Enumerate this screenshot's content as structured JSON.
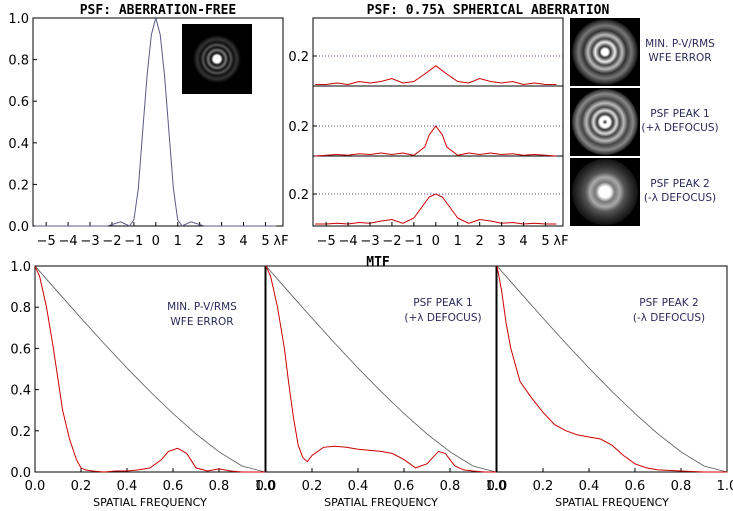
{
  "titles": {
    "psf_free": "PSF: ABERRATION-FREE",
    "psf_sa": "PSF: 0.75λ SPHERICAL ABERRATION",
    "mtf": "MTF"
  },
  "colors": {
    "curve": "#cc0000",
    "ideal": "#555555",
    "airy_line": "#5a5a88",
    "dotted": "#6a3a8a",
    "axis": "#000000"
  },
  "chart_data": [
    {
      "id": "psf_free",
      "type": "line",
      "title": "PSF: ABERRATION-FREE",
      "xlabel": "λF",
      "xlim": [
        -5.6,
        5.8
      ],
      "ylim": [
        0,
        1.0
      ],
      "xticks": [
        "−5",
        "−4",
        "−3",
        "−2",
        "−1",
        "0",
        "1",
        "2",
        "3",
        "4",
        "5"
      ],
      "yticks": [
        "0.0",
        "0.2",
        "0.4",
        "0.6",
        "0.8",
        "1.0"
      ],
      "inset": "airy-disc-image",
      "series": [
        {
          "x": [
            -5.5,
            -3.0,
            -2.2,
            -1.6,
            -1.2,
            -1.0,
            -0.8,
            -0.6,
            -0.4,
            -0.2,
            0,
            0.2,
            0.4,
            0.6,
            0.8,
            1.0,
            1.2,
            1.6,
            2.2,
            3.0,
            5.5
          ],
          "y": [
            0.0,
            0.0,
            0.0,
            0.02,
            0.0,
            0.03,
            0.18,
            0.45,
            0.72,
            0.92,
            1.0,
            0.92,
            0.72,
            0.45,
            0.18,
            0.03,
            0.0,
            0.02,
            0.0,
            0.0,
            0.0
          ]
        }
      ]
    },
    {
      "id": "psf_sa",
      "type": "line",
      "title": "PSF: 0.75λ SPHERICAL ABERRATION",
      "xlabel": "λF",
      "xlim": [
        -5.6,
        5.8
      ],
      "xticks": [
        "−5",
        "−4",
        "−3",
        "−2",
        "−1",
        "0",
        "1",
        "2",
        "3",
        "4",
        "5"
      ],
      "yticks": [
        "0.2",
        "0.2",
        "0.2"
      ],
      "panels": [
        {
          "label": "MIN. P-V/RMS WFE ERROR",
          "label_lines": [
            "MIN. P-V/RMS",
            "WFE ERROR"
          ],
          "x": [
            -5.5,
            -5.0,
            -4.5,
            -4.0,
            -3.5,
            -3.0,
            -2.5,
            -2.0,
            -1.5,
            -1.0,
            -0.5,
            0.0,
            0.5,
            1.0,
            1.5,
            2.0,
            2.5,
            3.0,
            3.5,
            4.0,
            4.5,
            5.0,
            5.5
          ],
          "y": [
            0.01,
            0.01,
            0.02,
            0.01,
            0.03,
            0.02,
            0.03,
            0.05,
            0.02,
            0.03,
            0.08,
            0.135,
            0.08,
            0.03,
            0.02,
            0.05,
            0.03,
            0.02,
            0.03,
            0.01,
            0.02,
            0.01,
            0.01
          ]
        },
        {
          "label": "PSF PEAK 1 (+λ DEFOCUS)",
          "label_lines": [
            "PSF PEAK 1",
            "(+λ DEFOCUS)"
          ],
          "x": [
            -5.5,
            -5.0,
            -4.5,
            -4.0,
            -3.5,
            -3.0,
            -2.5,
            -2.0,
            -1.5,
            -1.0,
            -0.5,
            -0.3,
            0.0,
            0.3,
            0.5,
            1.0,
            1.5,
            2.0,
            2.5,
            3.0,
            3.5,
            4.0,
            4.5,
            5.0,
            5.5
          ],
          "y": [
            0.0,
            0.005,
            0.01,
            0.005,
            0.015,
            0.01,
            0.02,
            0.01,
            0.02,
            0.005,
            0.06,
            0.14,
            0.2,
            0.14,
            0.06,
            0.005,
            0.02,
            0.01,
            0.02,
            0.01,
            0.015,
            0.005,
            0.01,
            0.005,
            0.0
          ]
        },
        {
          "label": "PSF PEAK 2 (-λ DEFOCUS)",
          "label_lines": [
            "PSF PEAK 2",
            "(-λ DEFOCUS)"
          ],
          "x": [
            -5.5,
            -5.0,
            -4.5,
            -4.0,
            -3.5,
            -3.0,
            -2.5,
            -2.0,
            -1.5,
            -1.0,
            -0.6,
            -0.3,
            0.0,
            0.3,
            0.6,
            1.0,
            1.5,
            2.0,
            2.5,
            3.0,
            3.5,
            4.0,
            4.5,
            5.0,
            5.5
          ],
          "y": [
            0.0,
            0.0,
            0.005,
            0.0,
            0.01,
            0.005,
            0.02,
            0.03,
            0.005,
            0.04,
            0.12,
            0.18,
            0.2,
            0.18,
            0.12,
            0.04,
            0.005,
            0.03,
            0.02,
            0.005,
            0.01,
            0.0,
            0.005,
            0.0,
            0.0
          ]
        }
      ]
    },
    {
      "id": "mtf",
      "type": "line",
      "title": "MTF",
      "xlabel": "SPATIAL FREQUENCY",
      "xlim": [
        0,
        1.0
      ],
      "ylim": [
        0,
        1.0
      ],
      "xticks": [
        "0.0",
        "0.2",
        "0.4",
        "0.6",
        "0.8",
        "1.0"
      ],
      "yticks": [
        "0.0",
        "0.2",
        "0.4",
        "0.6",
        "0.8",
        "1.0"
      ],
      "ideal": {
        "x": [
          0,
          0.1,
          0.2,
          0.3,
          0.4,
          0.5,
          0.6,
          0.7,
          0.8,
          0.9,
          1.0
        ],
        "y": [
          1.0,
          0.873,
          0.747,
          0.624,
          0.505,
          0.391,
          0.284,
          0.185,
          0.098,
          0.029,
          0.0
        ]
      },
      "panels": [
        {
          "label": "MIN. P-V/RMS WFE ERROR",
          "label_lines": [
            "MIN. P-V/RMS",
            "WFE ERROR"
          ],
          "x": [
            0,
            0.02,
            0.05,
            0.08,
            0.1,
            0.12,
            0.15,
            0.18,
            0.2,
            0.22,
            0.25,
            0.3,
            0.35,
            0.4,
            0.45,
            0.5,
            0.55,
            0.58,
            0.62,
            0.66,
            0.7,
            0.75,
            0.8,
            0.85,
            0.9,
            0.95,
            1.0
          ],
          "y": [
            1.0,
            0.95,
            0.8,
            0.6,
            0.45,
            0.3,
            0.16,
            0.06,
            0.02,
            0.01,
            0.005,
            0.0,
            0.005,
            0.005,
            0.01,
            0.02,
            0.06,
            0.1,
            0.115,
            0.09,
            0.02,
            0.005,
            0.015,
            0.005,
            0.0,
            0.0,
            0.0
          ]
        },
        {
          "label": "PSF PEAK 1 (+λ DEFOCUS)",
          "label_lines": [
            "PSF PEAK 1",
            "(+λ DEFOCUS)"
          ],
          "x": [
            0,
            0.02,
            0.05,
            0.08,
            0.1,
            0.12,
            0.14,
            0.16,
            0.18,
            0.2,
            0.25,
            0.3,
            0.35,
            0.4,
            0.5,
            0.55,
            0.6,
            0.65,
            0.7,
            0.75,
            0.78,
            0.82,
            0.86,
            0.9,
            0.95,
            1.0
          ],
          "y": [
            1.0,
            0.95,
            0.8,
            0.6,
            0.42,
            0.26,
            0.13,
            0.07,
            0.05,
            0.08,
            0.12,
            0.125,
            0.12,
            0.11,
            0.1,
            0.09,
            0.06,
            0.02,
            0.04,
            0.1,
            0.09,
            0.03,
            0.01,
            0.005,
            0.0,
            0.0
          ]
        },
        {
          "label": "PSF PEAK 2 (-λ DEFOCUS)",
          "label_lines": [
            "PSF PEAK 2",
            "(-λ DEFOCUS)"
          ],
          "x": [
            0,
            0.02,
            0.04,
            0.06,
            0.08,
            0.1,
            0.15,
            0.2,
            0.25,
            0.3,
            0.35,
            0.4,
            0.45,
            0.5,
            0.55,
            0.6,
            0.65,
            0.7,
            0.8,
            0.9,
            1.0
          ],
          "y": [
            1.0,
            0.88,
            0.72,
            0.6,
            0.52,
            0.44,
            0.36,
            0.29,
            0.23,
            0.2,
            0.18,
            0.17,
            0.16,
            0.13,
            0.08,
            0.04,
            0.02,
            0.01,
            0.005,
            0.0,
            0.0
          ]
        }
      ]
    }
  ]
}
